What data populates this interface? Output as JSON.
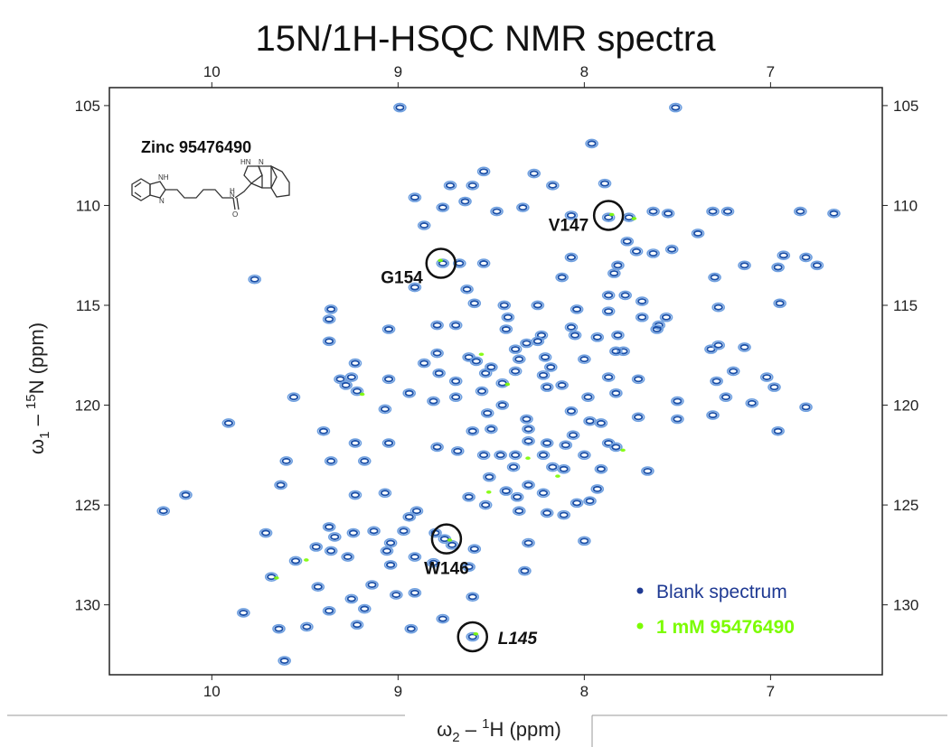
{
  "chart_data": {
    "type": "scatter",
    "title": "15N/1H-HSQC NMR spectra",
    "xlabel": {
      "pre": "ω",
      "sub": "2",
      "mid": " – ",
      "sup": "1",
      "post": "H (ppm)"
    },
    "ylabel": {
      "pre": "ω",
      "sub": "1",
      "mid": " – ",
      "sup": "15",
      "post": "N (ppm)"
    },
    "xlim": [
      10.55,
      6.4
    ],
    "ylim": [
      104.1,
      133.5
    ],
    "x_reversed": true,
    "y_reversed": true,
    "x_ticks": [
      "10",
      "9",
      "8",
      "7"
    ],
    "y_ticks": [
      "105",
      "110",
      "115",
      "120",
      "125",
      "130"
    ],
    "compound_label": "Zinc 95476490",
    "legend": [
      {
        "label": "Blank spectrum",
        "color": "#1f3a93"
      },
      {
        "label": "1 mM 95476490",
        "color": "#7cfc00"
      }
    ],
    "colors": {
      "blank": "#1a4fa8",
      "blank_light": "#6fa0e0",
      "ligand": "#7cfc00"
    },
    "annotations": [
      {
        "label": "V147",
        "italic": false,
        "x": 7.87,
        "y": 110.5
      },
      {
        "label": "G154",
        "italic": false,
        "x": 8.77,
        "y": 112.9
      },
      {
        "label": "W146",
        "italic": false,
        "x": 8.74,
        "y": 126.7
      },
      {
        "label": "L145",
        "italic": true,
        "x": 8.6,
        "y": 131.6
      }
    ],
    "series": [
      {
        "name": "Blank spectrum",
        "points": [
          [
            8.99,
            105.1
          ],
          [
            7.51,
            105.1
          ],
          [
            7.96,
            106.9
          ],
          [
            8.54,
            108.3
          ],
          [
            8.27,
            108.4
          ],
          [
            8.17,
            109.0
          ],
          [
            7.89,
            108.9
          ],
          [
            8.72,
            109.0
          ],
          [
            8.6,
            109.0
          ],
          [
            8.91,
            109.6
          ],
          [
            8.64,
            109.8
          ],
          [
            8.33,
            110.1
          ],
          [
            8.76,
            110.1
          ],
          [
            8.47,
            110.3
          ],
          [
            8.07,
            110.5
          ],
          [
            7.87,
            110.6
          ],
          [
            7.76,
            110.6
          ],
          [
            7.63,
            110.3
          ],
          [
            7.55,
            110.4
          ],
          [
            7.31,
            110.3
          ],
          [
            7.23,
            110.3
          ],
          [
            6.84,
            110.3
          ],
          [
            6.66,
            110.4
          ],
          [
            8.86,
            111.0
          ],
          [
            7.39,
            111.4
          ],
          [
            7.77,
            111.8
          ],
          [
            7.72,
            112.3
          ],
          [
            7.63,
            112.4
          ],
          [
            7.53,
            112.2
          ],
          [
            6.93,
            112.5
          ],
          [
            6.81,
            112.6
          ],
          [
            6.75,
            113.0
          ],
          [
            6.96,
            113.1
          ],
          [
            7.14,
            113.0
          ],
          [
            7.3,
            113.6
          ],
          [
            7.82,
            113.0
          ],
          [
            7.84,
            113.4
          ],
          [
            8.76,
            112.9
          ],
          [
            8.67,
            112.9
          ],
          [
            8.54,
            112.9
          ],
          [
            8.07,
            112.6
          ],
          [
            8.12,
            113.6
          ],
          [
            8.91,
            114.1
          ],
          [
            8.63,
            114.2
          ],
          [
            9.77,
            113.7
          ],
          [
            8.25,
            115.0
          ],
          [
            8.43,
            115.0
          ],
          [
            8.59,
            114.9
          ],
          [
            7.87,
            114.5
          ],
          [
            7.78,
            114.5
          ],
          [
            7.87,
            115.3
          ],
          [
            7.69,
            114.8
          ],
          [
            8.04,
            115.2
          ],
          [
            8.41,
            115.6
          ],
          [
            7.69,
            115.6
          ],
          [
            7.56,
            115.6
          ],
          [
            7.28,
            115.1
          ],
          [
            6.95,
            114.9
          ],
          [
            9.36,
            115.2
          ],
          [
            9.37,
            115.7
          ],
          [
            8.69,
            116.0
          ],
          [
            8.79,
            116.0
          ],
          [
            8.42,
            116.2
          ],
          [
            8.07,
            116.1
          ],
          [
            8.05,
            116.5
          ],
          [
            8.23,
            116.5
          ],
          [
            8.25,
            116.8
          ],
          [
            7.82,
            116.5
          ],
          [
            7.6,
            116.0
          ],
          [
            7.61,
            116.2
          ],
          [
            9.05,
            116.2
          ],
          [
            8.79,
            117.4
          ],
          [
            8.37,
            117.2
          ],
          [
            8.31,
            116.9
          ],
          [
            7.93,
            116.6
          ],
          [
            8.62,
            117.6
          ],
          [
            8.58,
            117.8
          ],
          [
            8.35,
            117.7
          ],
          [
            8.21,
            117.6
          ],
          [
            7.79,
            117.3
          ],
          [
            7.32,
            117.2
          ],
          [
            7.28,
            117.0
          ],
          [
            7.14,
            117.1
          ],
          [
            9.37,
            116.8
          ],
          [
            8.18,
            118.1
          ],
          [
            8.0,
            117.7
          ],
          [
            7.83,
            117.3
          ],
          [
            8.53,
            118.4
          ],
          [
            8.5,
            118.1
          ],
          [
            8.22,
            118.5
          ],
          [
            8.37,
            118.3
          ],
          [
            7.87,
            118.6
          ],
          [
            7.71,
            118.7
          ],
          [
            7.29,
            118.8
          ],
          [
            7.2,
            118.3
          ],
          [
            7.02,
            118.6
          ],
          [
            6.98,
            119.1
          ],
          [
            9.23,
            117.9
          ],
          [
            8.86,
            117.9
          ],
          [
            8.78,
            118.4
          ],
          [
            9.25,
            118.6
          ],
          [
            9.31,
            118.7
          ],
          [
            9.28,
            119.0
          ],
          [
            9.22,
            119.3
          ],
          [
            9.05,
            118.7
          ],
          [
            8.69,
            118.8
          ],
          [
            8.55,
            119.3
          ],
          [
            8.44,
            118.9
          ],
          [
            8.2,
            119.1
          ],
          [
            8.12,
            119.0
          ],
          [
            7.98,
            119.6
          ],
          [
            7.83,
            119.4
          ],
          [
            7.5,
            119.8
          ],
          [
            7.24,
            119.6
          ],
          [
            7.1,
            119.9
          ],
          [
            6.81,
            120.1
          ],
          [
            9.56,
            119.6
          ],
          [
            9.07,
            120.2
          ],
          [
            8.94,
            119.4
          ],
          [
            8.81,
            119.8
          ],
          [
            8.69,
            119.6
          ],
          [
            8.52,
            120.4
          ],
          [
            8.44,
            120.0
          ],
          [
            8.31,
            120.7
          ],
          [
            8.07,
            120.3
          ],
          [
            7.97,
            120.8
          ],
          [
            7.91,
            120.9
          ],
          [
            7.71,
            120.6
          ],
          [
            7.5,
            120.7
          ],
          [
            7.31,
            120.5
          ],
          [
            6.96,
            121.3
          ],
          [
            9.91,
            120.9
          ],
          [
            9.4,
            121.3
          ],
          [
            8.6,
            121.3
          ],
          [
            8.5,
            121.2
          ],
          [
            8.3,
            121.2
          ],
          [
            8.06,
            121.5
          ],
          [
            7.87,
            121.9
          ],
          [
            9.23,
            121.9
          ],
          [
            9.05,
            121.9
          ],
          [
            8.79,
            122.1
          ],
          [
            8.68,
            122.3
          ],
          [
            8.54,
            122.5
          ],
          [
            8.45,
            122.5
          ],
          [
            8.37,
            122.5
          ],
          [
            8.3,
            121.8
          ],
          [
            8.2,
            121.9
          ],
          [
            8.22,
            122.5
          ],
          [
            8.1,
            122.0
          ],
          [
            8.0,
            122.5
          ],
          [
            7.83,
            122.1
          ],
          [
            8.38,
            123.1
          ],
          [
            8.17,
            123.1
          ],
          [
            8.11,
            123.2
          ],
          [
            7.91,
            123.2
          ],
          [
            7.66,
            123.3
          ],
          [
            9.6,
            122.8
          ],
          [
            9.36,
            122.8
          ],
          [
            9.18,
            122.8
          ],
          [
            8.51,
            123.6
          ],
          [
            8.3,
            124.0
          ],
          [
            8.22,
            124.4
          ],
          [
            7.93,
            124.2
          ],
          [
            7.97,
            124.8
          ],
          [
            8.62,
            124.6
          ],
          [
            8.42,
            124.3
          ],
          [
            8.36,
            124.6
          ],
          [
            9.07,
            124.4
          ],
          [
            9.23,
            124.5
          ],
          [
            9.63,
            124.0
          ],
          [
            9.71,
            126.4
          ],
          [
            10.14,
            124.5
          ],
          [
            10.26,
            125.3
          ],
          [
            8.53,
            125.0
          ],
          [
            8.2,
            125.4
          ],
          [
            8.04,
            124.9
          ],
          [
            8.94,
            125.6
          ],
          [
            8.9,
            125.3
          ],
          [
            8.35,
            125.3
          ],
          [
            8.11,
            125.5
          ],
          [
            9.37,
            126.1
          ],
          [
            9.34,
            126.6
          ],
          [
            9.24,
            126.4
          ],
          [
            9.13,
            126.3
          ],
          [
            9.04,
            126.9
          ],
          [
            8.97,
            126.3
          ],
          [
            8.8,
            126.4
          ],
          [
            8.75,
            126.7
          ],
          [
            8.71,
            127.0
          ],
          [
            8.59,
            127.2
          ],
          [
            8.3,
            126.9
          ],
          [
            8.0,
            126.8
          ],
          [
            9.44,
            127.1
          ],
          [
            9.36,
            127.3
          ],
          [
            9.55,
            127.8
          ],
          [
            9.27,
            127.6
          ],
          [
            9.06,
            127.3
          ],
          [
            9.04,
            128.0
          ],
          [
            8.91,
            127.6
          ],
          [
            8.81,
            127.9
          ],
          [
            8.62,
            128.1
          ],
          [
            8.32,
            128.3
          ],
          [
            9.68,
            128.6
          ],
          [
            9.43,
            129.1
          ],
          [
            9.14,
            129.0
          ],
          [
            9.25,
            129.7
          ],
          [
            9.01,
            129.5
          ],
          [
            8.91,
            129.4
          ],
          [
            8.6,
            129.6
          ],
          [
            9.83,
            130.4
          ],
          [
            9.37,
            130.3
          ],
          [
            9.18,
            130.2
          ],
          [
            8.76,
            130.7
          ],
          [
            9.64,
            131.2
          ],
          [
            9.49,
            131.1
          ],
          [
            8.93,
            131.2
          ],
          [
            8.6,
            131.6
          ],
          [
            9.61,
            132.8
          ],
          [
            9.22,
            131.0
          ]
        ]
      },
      {
        "name": "1 mM 95476490",
        "points": [
          [
            7.86,
            110.5
          ],
          [
            8.78,
            112.8
          ],
          [
            8.73,
            126.8
          ],
          [
            8.59,
            131.5
          ],
          [
            7.74,
            110.7
          ],
          [
            8.56,
            117.5
          ],
          [
            8.42,
            119.0
          ],
          [
            8.31,
            122.7
          ],
          [
            8.52,
            124.4
          ],
          [
            8.15,
            123.6
          ],
          [
            9.5,
            127.8
          ],
          [
            9.66,
            128.7
          ],
          [
            7.8,
            122.3
          ],
          [
            9.2,
            119.5
          ]
        ]
      }
    ]
  }
}
